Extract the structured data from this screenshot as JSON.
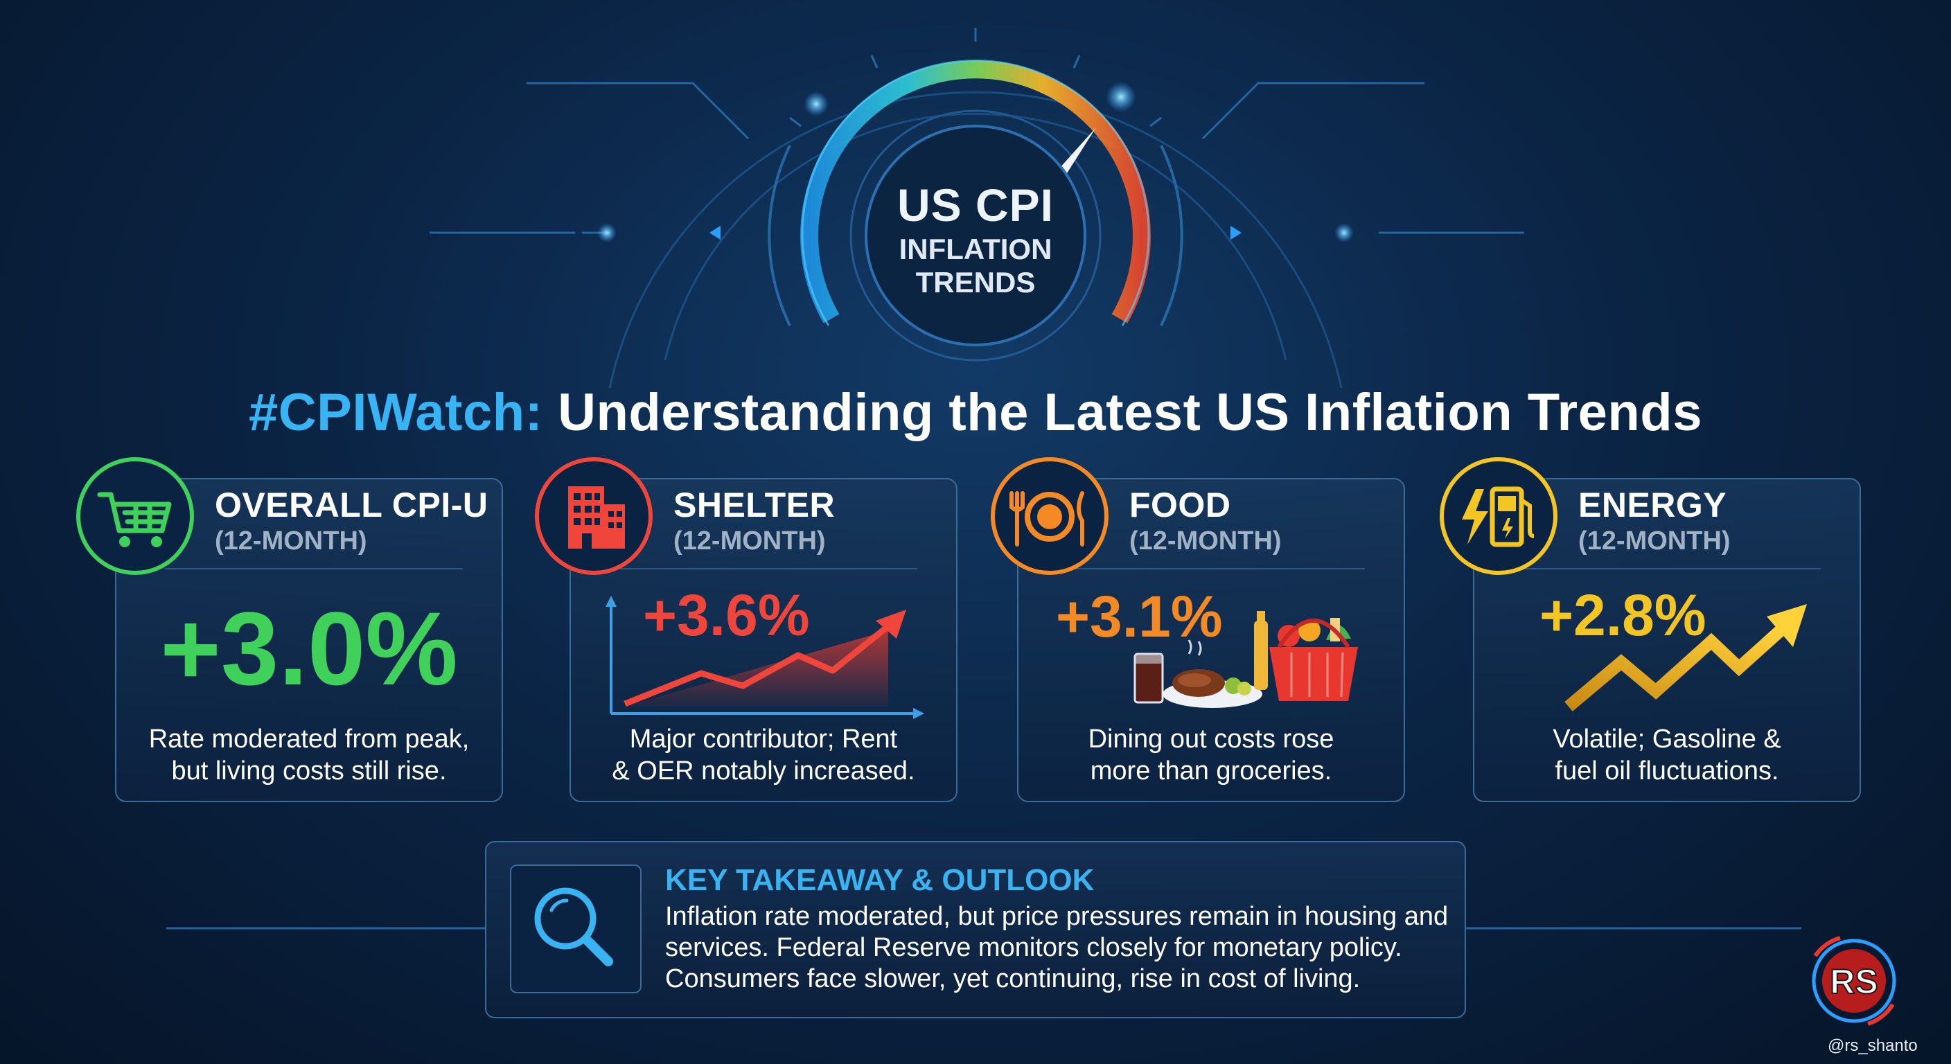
{
  "gauge": {
    "title": "US CPI",
    "subtitle_line1": "INFLATION",
    "subtitle_line2": "TRENDS"
  },
  "headline": {
    "tag": "#CPIWatch:",
    "text": " Understanding the Latest US Inflation Trends"
  },
  "cards": [
    {
      "title": "OVERALL CPI-U",
      "period": "(12-MONTH)",
      "value": "+3.0%",
      "color": "#3fd15a",
      "icon": "shopping-cart-icon",
      "desc_line1": "Rate moderated from peak,",
      "desc_line2": "but living costs still rise."
    },
    {
      "title": "SHELTER",
      "period": "(12-MONTH)",
      "value": "+3.6%",
      "color": "#f0453a",
      "icon": "building-icon",
      "desc_line1": "Major contributor; Rent",
      "desc_line2": "& OER notably increased."
    },
    {
      "title": "FOOD",
      "period": "(12-MONTH)",
      "value": "+3.1%",
      "color": "#f58a24",
      "icon": "plate-cutlery-icon",
      "desc_line1": "Dining out costs rose",
      "desc_line2": "more than groceries."
    },
    {
      "title": "ENERGY",
      "period": "(12-MONTH)",
      "value": "+2.8%",
      "color": "#f3c623",
      "icon": "fuel-pump-bolt-icon",
      "desc_line1": "Volatile; Gasoline &",
      "desc_line2": "fuel oil fluctuations."
    }
  ],
  "takeaway": {
    "title": "KEY TAKEAWAY & OUTLOOK",
    "line1": "Inflation rate moderated, but price pressures remain in housing and",
    "line2": "services. Federal Reserve monitors closely for monetary policy.",
    "line3": "Consumers face slower, yet continuing, rise in cost of living.",
    "icon": "magnifier-icon"
  },
  "watermark": {
    "logo_text": "RS",
    "handle": "@rs_shanto"
  }
}
